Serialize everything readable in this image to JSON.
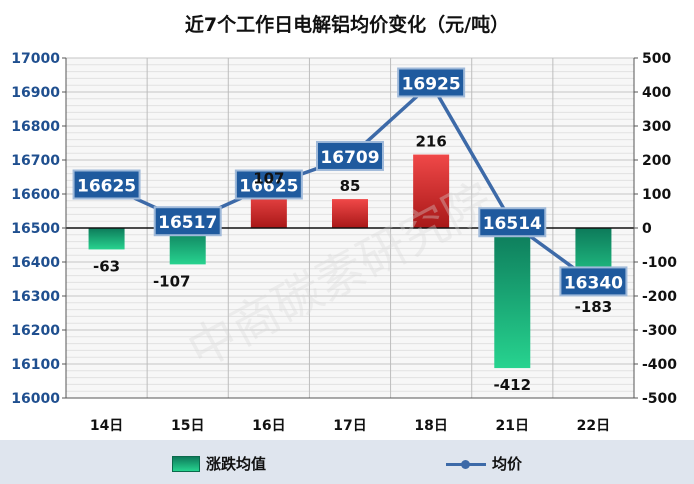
{
  "chart_data": {
    "type": "bar+line",
    "title": "近7个工作日电解铝均价变化（元/吨）",
    "categories": [
      "14日",
      "15日",
      "16日",
      "17日",
      "18日",
      "21日",
      "22日"
    ],
    "series": [
      {
        "name": "涨跌均值",
        "type": "bar",
        "axis": "right",
        "values": [
          -63,
          -107,
          107,
          85,
          216,
          -412,
          -183
        ],
        "labels": [
          "-63",
          "-107",
          "107",
          "85",
          "216",
          "-412",
          "-183"
        ]
      },
      {
        "name": "均价",
        "type": "line",
        "axis": "left",
        "values": [
          16625,
          16517,
          16625,
          16709,
          16925,
          16514,
          16340
        ],
        "labels": [
          "16625",
          "16517",
          "16625",
          "16709",
          "16925",
          "16514",
          "16340"
        ]
      }
    ],
    "y_left": {
      "range": [
        16000,
        17000
      ],
      "ticks": [
        "16000",
        "16100",
        "16200",
        "16300",
        "16400",
        "16500",
        "16600",
        "16700",
        "16800",
        "16900",
        "17000"
      ]
    },
    "y_right": {
      "range": [
        -500,
        500
      ],
      "ticks": [
        "-500",
        "-400",
        "-300",
        "-200",
        "-100",
        "0",
        "100",
        "200",
        "300",
        "400",
        "500"
      ]
    },
    "grid": true,
    "legend": "bottom",
    "watermark": "中商碳素研究院",
    "colors": {
      "bar_positive_top": "#f04848",
      "bar_positive_bottom": "#a81818",
      "bar_negative_top": "#0d7a5a",
      "bar_negative_bottom": "#27d38f",
      "line": "#3d6aa8",
      "label_box": "#1f5a9e",
      "label_box_border": "#9fb9d9"
    }
  }
}
